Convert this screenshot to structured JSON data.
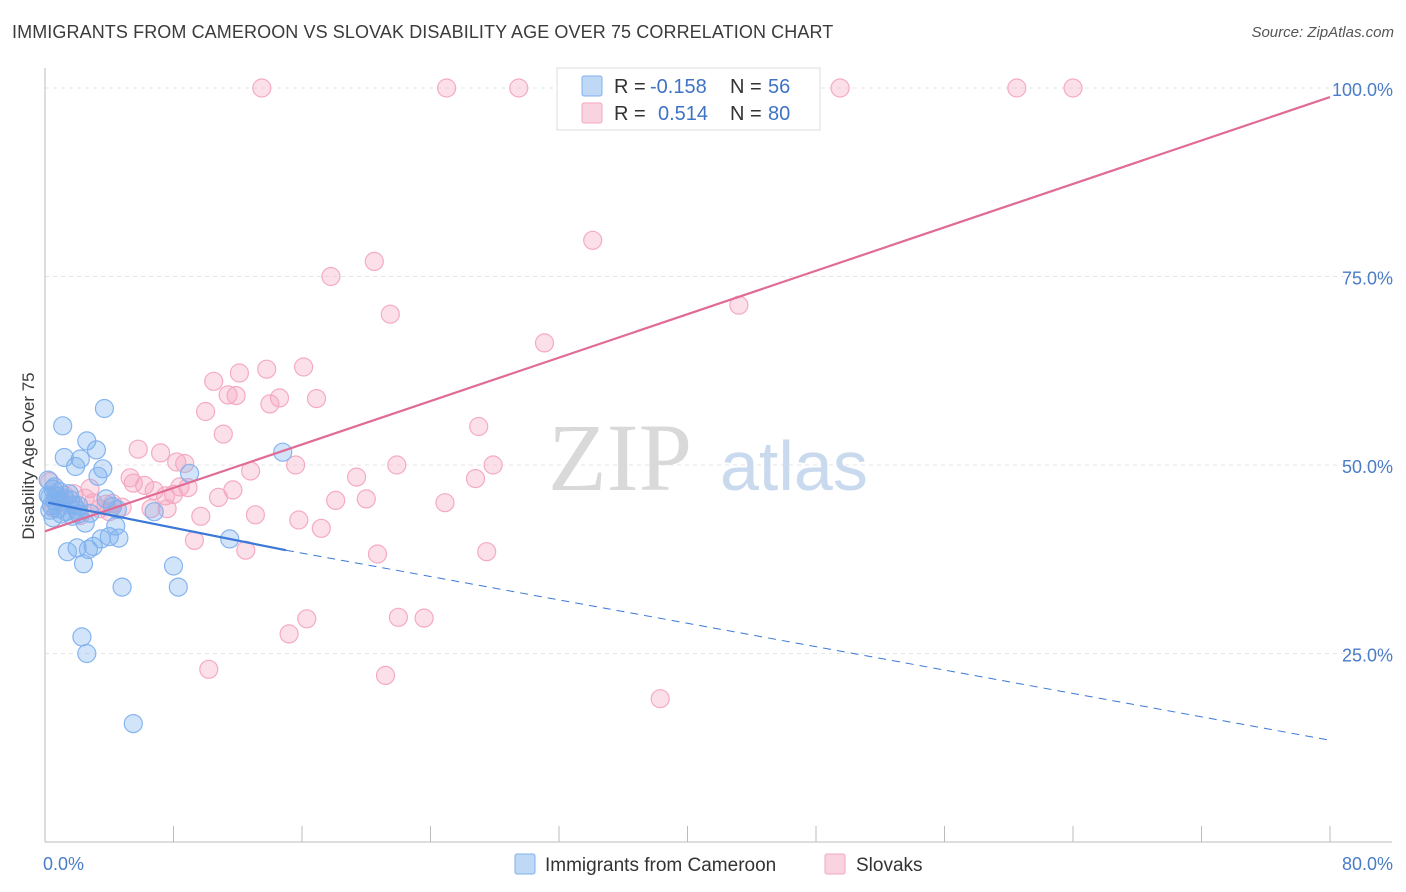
{
  "title": "IMMIGRANTS FROM CAMEROON VS SLOVAK DISABILITY AGE OVER 75 CORRELATION CHART",
  "source": "Source: ZipAtlas.com",
  "watermark": {
    "part1": "ZIP",
    "part2": "atlas"
  },
  "legend_top": [
    {
      "r_label": "R =",
      "r_value": "-0.158",
      "n_label": "N =",
      "n_value": "56",
      "color": "#7fb1ee"
    },
    {
      "r_label": "R =",
      "r_value": "0.514",
      "n_label": "N =",
      "n_value": "80",
      "color": "#f4a7c0"
    }
  ],
  "legend_bottom": [
    {
      "label": "Immigrants from Cameroon",
      "color": "#7fb1ee"
    },
    {
      "label": "Slovaks",
      "color": "#f4a7c0"
    }
  ],
  "chart_data": {
    "type": "scatter",
    "title": "IMMIGRANTS FROM CAMEROON VS SLOVAK DISABILITY AGE OVER 75 CORRELATION CHART",
    "xlabel": "",
    "ylabel": "Disability Age Over 75",
    "xlim": [
      0,
      80
    ],
    "ylim": [
      0,
      100
    ],
    "x_tick_labels": [
      "0.0%",
      "80.0%"
    ],
    "y_tick_labels": [
      "25.0%",
      "50.0%",
      "75.0%",
      "100.0%"
    ],
    "y_ticks": [
      25,
      50,
      75,
      100
    ],
    "grid": true,
    "legend_placement": "top-center",
    "series": [
      {
        "name": "Immigrants from Cameroon",
        "color": "#7fb1ee",
        "line_color": "#3b78d8",
        "trend": {
          "x0": 0.2,
          "y0": 45.0,
          "x1": 15.0,
          "y1": 38.7,
          "dash_x1": 80,
          "dash_y1": 13.5
        },
        "points": [
          [
            0.2,
            48.0
          ],
          [
            0.2,
            46.0
          ],
          [
            0.3,
            45.8
          ],
          [
            0.4,
            44.6
          ],
          [
            0.5,
            46.8
          ],
          [
            0.5,
            43.0
          ],
          [
            0.6,
            45.2
          ],
          [
            0.7,
            45.9
          ],
          [
            0.8,
            44.2
          ],
          [
            0.9,
            46.5
          ],
          [
            1.0,
            43.5
          ],
          [
            1.1,
            55.2
          ],
          [
            1.2,
            51.0
          ],
          [
            1.2,
            45.6
          ],
          [
            1.3,
            43.8
          ],
          [
            1.4,
            38.5
          ],
          [
            1.5,
            46.2
          ],
          [
            1.6,
            45.4
          ],
          [
            1.7,
            43.2
          ],
          [
            1.8,
            44.7
          ],
          [
            1.9,
            49.8
          ],
          [
            2.0,
            39.0
          ],
          [
            2.0,
            44.0
          ],
          [
            2.1,
            43.5
          ],
          [
            2.2,
            50.8
          ],
          [
            2.3,
            27.2
          ],
          [
            2.4,
            36.9
          ],
          [
            2.5,
            42.3
          ],
          [
            2.6,
            25.0
          ],
          [
            2.6,
            53.2
          ],
          [
            2.7,
            38.8
          ],
          [
            2.8,
            43.6
          ],
          [
            3.0,
            39.2
          ],
          [
            3.2,
            52.0
          ],
          [
            3.3,
            48.5
          ],
          [
            3.5,
            40.2
          ],
          [
            3.6,
            49.5
          ],
          [
            3.7,
            57.5
          ],
          [
            3.8,
            45.5
          ],
          [
            4.0,
            40.5
          ],
          [
            4.2,
            44.5
          ],
          [
            4.4,
            41.9
          ],
          [
            4.6,
            40.3
          ],
          [
            4.8,
            33.8
          ],
          [
            5.5,
            15.7
          ],
          [
            6.8,
            43.8
          ],
          [
            8.0,
            36.6
          ],
          [
            8.3,
            33.8
          ],
          [
            9.0,
            48.9
          ],
          [
            11.5,
            40.2
          ],
          [
            14.8,
            51.7
          ],
          [
            0.3,
            44.0
          ],
          [
            0.6,
            47.1
          ],
          [
            1.0,
            45.2
          ],
          [
            2.1,
            44.6
          ],
          [
            4.5,
            44.1
          ]
        ]
      },
      {
        "name": "Slovaks",
        "color": "#f4a7c0",
        "line_color": "#e06b96",
        "trend": {
          "x0": 0,
          "y0": 41.2,
          "x1": 80,
          "y1": 98.8
        },
        "points": [
          [
            0.3,
            47.8
          ],
          [
            0.5,
            44.3
          ],
          [
            0.8,
            45.8
          ],
          [
            1.5,
            44.7
          ],
          [
            1.8,
            46.2
          ],
          [
            2.2,
            43.3
          ],
          [
            2.8,
            46.9
          ],
          [
            3.0,
            45.0
          ],
          [
            3.4,
            44.2
          ],
          [
            3.8,
            44.8
          ],
          [
            4.2,
            44.9
          ],
          [
            4.8,
            44.4
          ],
          [
            5.3,
            48.3
          ],
          [
            5.5,
            47.6
          ],
          [
            5.8,
            52.1
          ],
          [
            6.2,
            47.3
          ],
          [
            6.6,
            44.2
          ],
          [
            6.8,
            46.6
          ],
          [
            7.2,
            51.6
          ],
          [
            7.5,
            45.9
          ],
          [
            7.6,
            44.2
          ],
          [
            8.0,
            46.1
          ],
          [
            8.2,
            50.4
          ],
          [
            8.4,
            47.1
          ],
          [
            8.7,
            50.2
          ],
          [
            8.9,
            47.0
          ],
          [
            9.3,
            40.0
          ],
          [
            9.7,
            43.2
          ],
          [
            10.0,
            57.1
          ],
          [
            10.2,
            22.9
          ],
          [
            10.5,
            61.1
          ],
          [
            10.8,
            45.7
          ],
          [
            11.1,
            54.1
          ],
          [
            11.4,
            59.3
          ],
          [
            11.7,
            46.7
          ],
          [
            11.9,
            59.2
          ],
          [
            12.1,
            62.2
          ],
          [
            12.5,
            38.7
          ],
          [
            12.8,
            49.2
          ],
          [
            13.1,
            43.4
          ],
          [
            13.5,
            100.0
          ],
          [
            13.8,
            62.7
          ],
          [
            14.0,
            58.1
          ],
          [
            14.6,
            58.9
          ],
          [
            15.2,
            27.6
          ],
          [
            15.6,
            50.0
          ],
          [
            15.8,
            42.7
          ],
          [
            16.1,
            63.0
          ],
          [
            16.3,
            29.6
          ],
          [
            16.9,
            58.8
          ],
          [
            17.2,
            41.6
          ],
          [
            17.8,
            75.0
          ],
          [
            18.1,
            45.3
          ],
          [
            19.4,
            48.4
          ],
          [
            20.0,
            45.5
          ],
          [
            20.5,
            77.0
          ],
          [
            20.7,
            38.2
          ],
          [
            21.2,
            22.1
          ],
          [
            21.5,
            70.0
          ],
          [
            21.9,
            50.0
          ],
          [
            22.0,
            29.8
          ],
          [
            23.6,
            29.7
          ],
          [
            24.9,
            45.0
          ],
          [
            25.0,
            100.0
          ],
          [
            26.8,
            48.2
          ],
          [
            27.0,
            55.1
          ],
          [
            27.5,
            38.5
          ],
          [
            27.9,
            50.0
          ],
          [
            29.5,
            100.0
          ],
          [
            31.1,
            66.2
          ],
          [
            34.1,
            79.8
          ],
          [
            35.2,
            100.0
          ],
          [
            38.3,
            19.0
          ],
          [
            43.2,
            71.2
          ],
          [
            49.5,
            100.0
          ],
          [
            60.5,
            100.0
          ],
          [
            64.0,
            100.0
          ],
          [
            1.2,
            46.0
          ],
          [
            2.5,
            45.6
          ],
          [
            4.0,
            43.8
          ]
        ]
      }
    ]
  }
}
